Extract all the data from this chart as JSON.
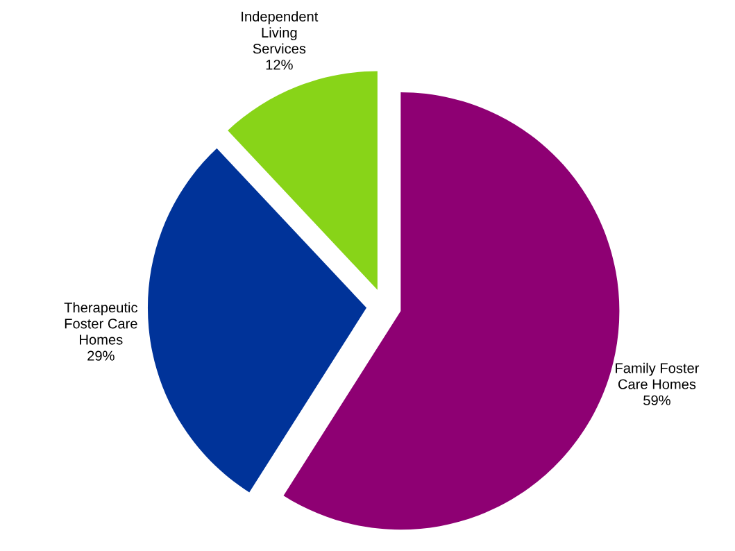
{
  "chart_data": {
    "type": "pie",
    "categories": [
      "Family Foster Care Homes",
      "Therapeutic Foster Care Homes",
      "Independent Living Services"
    ],
    "values": [
      59,
      29,
      12
    ],
    "colors": [
      "#8e0073",
      "#003399",
      "#88d418"
    ],
    "value_labels": [
      "59%",
      "29%",
      "12%"
    ]
  }
}
